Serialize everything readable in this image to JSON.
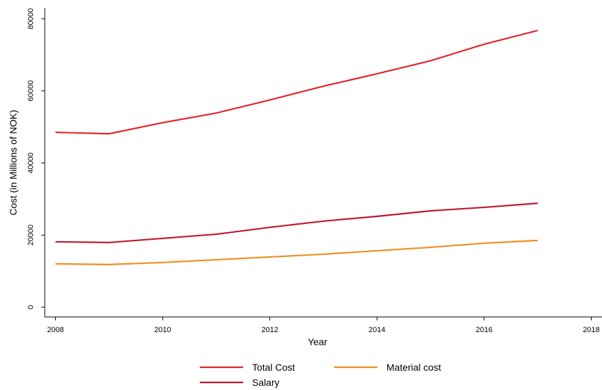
{
  "chart_data": {
    "type": "line",
    "x_label": "Year",
    "y_label": "Cost (in Millions of NOK)",
    "x": [
      2008,
      2009,
      2010,
      2011,
      2012,
      2013,
      2014,
      2015,
      2016,
      2017
    ],
    "series": [
      {
        "name": "Total Cost",
        "color": "#e3242b",
        "values": [
          48500,
          48100,
          51170,
          53840,
          57470,
          61290,
          64730,
          68350,
          72930,
          76750
        ]
      },
      {
        "name": "Material cost",
        "color": "#f28c1f",
        "values": [
          12030,
          11840,
          12410,
          13170,
          13940,
          14700,
          15660,
          16610,
          17760,
          18520
        ]
      },
      {
        "name": "Salary",
        "color": "#c1172f",
        "values": [
          18140,
          17950,
          19090,
          20240,
          22150,
          23870,
          25200,
          26730,
          27690,
          28830
        ]
      }
    ],
    "xlim": [
      2007.8,
      2018.2
    ],
    "xticks": [
      2008,
      2010,
      2012,
      2014,
      2016,
      2018
    ],
    "ylim": [
      -2700,
      82900
    ],
    "yticks": [
      0,
      20000,
      40000,
      60000,
      80000
    ],
    "grid": false,
    "legend": "bottom"
  }
}
